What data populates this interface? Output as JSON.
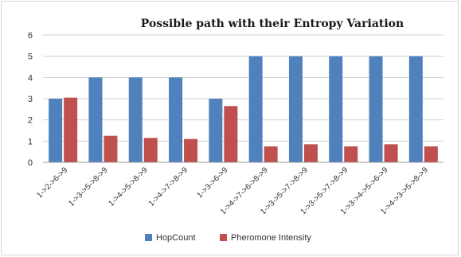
{
  "chart_data": {
    "type": "bar",
    "title": "Possible path with their Entropy Variation",
    "xlabel": "",
    "ylabel": "",
    "ylim": [
      0,
      6
    ],
    "yticks": [
      0,
      1,
      2,
      3,
      4,
      5,
      6
    ],
    "grid": true,
    "legend_position": "bottom",
    "categories": [
      "1->2->6->9",
      "1->3->5->8->9",
      "1->4->5->8->9",
      "1->4->7->8->9",
      "1->3->6->9",
      "1->4->7->6->8->9",
      "1->3->5->7->8->9",
      "1->3->5->7->8->9",
      "1->3->4->5->6->9",
      "1->4->3->5->8->9"
    ],
    "series": [
      {
        "name": "HopCount",
        "color": "#4f81bd",
        "values": [
          3,
          4,
          4,
          4,
          3,
          5,
          5,
          5,
          5,
          5
        ]
      },
      {
        "name": "Pheromone  Intensity",
        "color": "#c0504d",
        "values": [
          3.05,
          1.25,
          1.15,
          1.1,
          2.65,
          0.75,
          0.85,
          0.75,
          0.85,
          0.75
        ]
      }
    ]
  }
}
